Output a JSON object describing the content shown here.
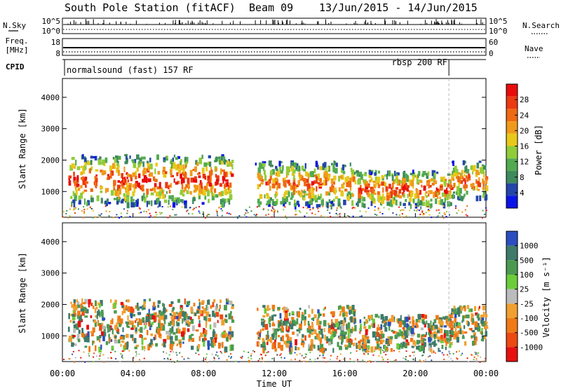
{
  "header": {
    "station": "South Pole Station (fitACF)",
    "beam": "Beam 09",
    "dates": "13/Jun/2015 - 14/Jun/2015"
  },
  "top_panel": {
    "left_label": "N.Sky",
    "left_ticks": [
      "10^5",
      "10^0"
    ],
    "right_label": "N.Search",
    "right_ticks": [
      "10^5",
      "10^0"
    ]
  },
  "freq_panel": {
    "left_label_line1": "Freq.",
    "left_label_line2": "[MHz]",
    "left_ticks": [
      "18",
      "8"
    ],
    "right_label": "Nave",
    "right_ticks": [
      "60",
      "0"
    ]
  },
  "cpid_panel": {
    "label": "CPID",
    "mode1": "normalsound (fast) 157 RF",
    "mode2": "rbsp 200 RF",
    "mode_change_hour": 21.9
  },
  "chart_data": [
    {
      "type": "heatmap",
      "name": "power",
      "ylabel": "Slant Range [km]",
      "xlabel": "",
      "xlim_hours": [
        0,
        24
      ],
      "ylim": [
        180,
        4600
      ],
      "y_ticks": [
        1000,
        2000,
        3000,
        4000
      ],
      "colorbar_label": "Power [dB]",
      "colorbar_ticks": [
        "4",
        "8",
        "12",
        "16",
        "20",
        "24",
        "28"
      ],
      "colorbar_colors": [
        "#0a14e6",
        "#2346a8",
        "#3e8a5c",
        "#52aa50",
        "#8fcc3a",
        "#e8c818",
        "#f09a1a",
        "#ef6a12",
        "#ec3a12",
        "#e80c0c"
      ],
      "echo_bands": [
        {
          "start_h": 0.3,
          "end_h": 9.6,
          "range_low": 650,
          "range_high": 2200,
          "level": 0.78
        },
        {
          "start_h": 10.9,
          "end_h": 16.5,
          "range_low": 600,
          "range_high": 2000,
          "level": 0.62
        },
        {
          "start_h": 16.5,
          "end_h": 22.0,
          "range_low": 600,
          "range_high": 1700,
          "level": 0.72
        },
        {
          "start_h": 22.0,
          "end_h": 24.0,
          "range_low": 800,
          "range_high": 2000,
          "level": 0.65
        }
      ]
    },
    {
      "type": "heatmap",
      "name": "velocity",
      "ylabel": "Slant Range [km]",
      "xlabel": "Time UT",
      "xlim_hours": [
        0,
        24
      ],
      "ylim": [
        180,
        4600
      ],
      "y_ticks": [
        1000,
        2000,
        3000,
        4000
      ],
      "x_ticks": [
        "00:00",
        "04:00",
        "08:00",
        "12:00",
        "16:00",
        "20:00",
        "00:00"
      ],
      "colorbar_label": "Velocity [m s⁻¹]",
      "colorbar_ticks": [
        "1000",
        "500",
        "100",
        "25",
        "-25",
        "-100",
        "-500",
        "-1000"
      ],
      "colorbar_colors": [
        "#2a4ec0",
        "#3e7a6a",
        "#4c9a50",
        "#6ccc3a",
        "#bbbbbb",
        "#f0a030",
        "#ef7a16",
        "#ec4a12",
        "#e61010"
      ]
    }
  ]
}
